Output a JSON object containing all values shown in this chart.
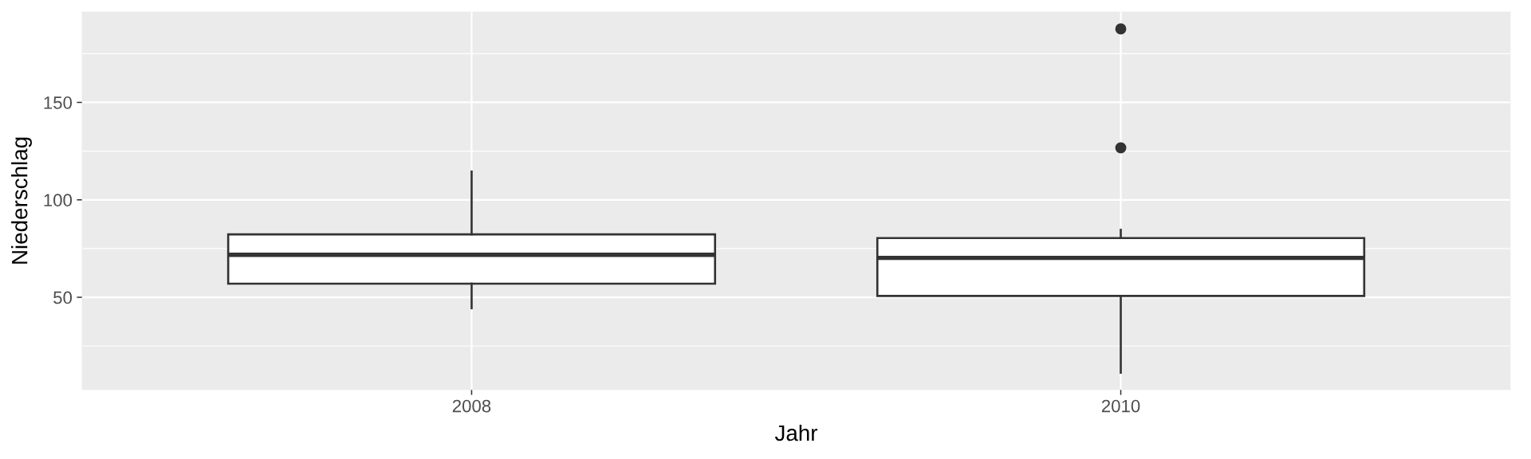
{
  "chart_data": {
    "type": "box",
    "xlabel": "Jahr",
    "ylabel": "Niederschlag",
    "categories": [
      "2008",
      "2010"
    ],
    "boxes": [
      {
        "low": 44.4,
        "q1": 57.0,
        "median": 71.8,
        "q3": 82.3,
        "high": 114.5
      },
      {
        "low": 11.3,
        "q1": 50.7,
        "median": 70.2,
        "q3": 80.4,
        "high": 84.6,
        "outliers": [
          126.7,
          187.7
        ]
      }
    ],
    "ylim": [
      2.6,
      196.4
    ],
    "yticks": [
      50,
      100,
      150
    ],
    "grid": true
  }
}
